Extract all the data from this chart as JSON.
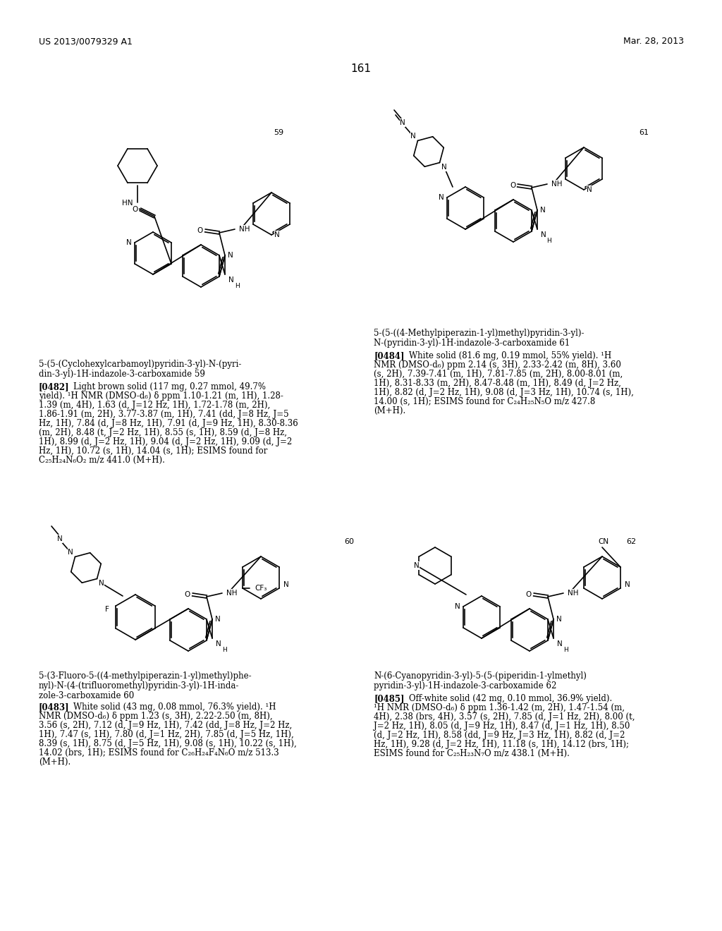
{
  "page_header_left": "US 2013/0079329 A1",
  "page_header_right": "Mar. 28, 2013",
  "page_number": "161",
  "bg_color": "#ffffff",
  "compound_labels": [
    "59",
    "61",
    "60",
    "62"
  ],
  "name59_lines": [
    "5-(5-(Cyclohexylcarbamoyl)pyridin-3-yl)-N-(pyri-",
    "din-3-yl)-1H-indazole-3-carboxamide 59"
  ],
  "name61_lines": [
    "5-(5-((4-Methylpiperazin-1-yl)methyl)pyridin-3-yl)-",
    "N-(pyridin-3-yl)-1H-indazole-3-carboxamide 61"
  ],
  "name60_lines": [
    "5-(3-Fluoro-5-((4-methylpiperazin-1-yl)methyl)phe-",
    "nyl)-N-(4-(trifluoromethyl)pyridin-3-yl)-1H-inda-",
    "zole-3-carboxamide 60"
  ],
  "name62_lines": [
    "N-(6-Cyanopyridin-3-yl)-5-(5-(piperidin-1-ylmethyl)",
    "pyridin-3-yl)-1H-indazole-3-carboxamide 62"
  ],
  "para482_label": "[0482]",
  "para482_lines": [
    "Light brown solid (117 mg, 0.27 mmol, 49.7%",
    "yield). ¹H NMR (DMSO-d₆) δ ppm 1.10-1.21 (m, 1H), 1.28-",
    "1.39 (m, 4H), 1.63 (d, J=12 Hz, 1H), 1.72-1.78 (m, 2H),",
    "1.86-1.91 (m, 2H), 3.77-3.87 (m, 1H), 7.41 (dd, J=8 Hz, J=5",
    "Hz, 1H), 7.84 (d, J=8 Hz, 1H), 7.91 (d, J=9 Hz, 1H), 8.30-8.36",
    "(m, 2H), 8.48 (t, J=2 Hz, 1H), 8.55 (s, 1H), 8.59 (d, J=8 Hz,",
    "1H), 8.99 (d, J=2 Hz, 1H), 9.04 (d, J=2 Hz, 1H), 9.09 (d, J=2",
    "Hz, 1H), 10.72 (s, 1H), 14.04 (s, 1H); ESIMS found for",
    "C₂₅H₂₄N₆O₂ m/z 441.0 (M+H)."
  ],
  "para484_label": "[0484]",
  "para484_lines": [
    "White solid (81.6 mg, 0.19 mmol, 55% yield). ¹H",
    "NMR (DMSO-d₆) ppm 2.14 (s, 3H), 2.33-2.42 (m, 8H), 3.60",
    "(s, 2H), 7.39-7.41 (m, 1H), 7.81-7.85 (m, 2H), 8.00-8.01 (m,",
    "1H), 8.31-8.33 (m, 2H), 8.47-8.48 (m, 1H), 8.49 (d, J=2 Hz,",
    "1H), 8.82 (d, J=2 Hz, 1H), 9.08 (d, J=3 Hz, 1H), 10.74 (s, 1H),",
    "14.00 (s, 1H); ESIMS found for C₂₄H₂₅N₅O m/z 427.8",
    "(M+H)."
  ],
  "para483_label": "[0483]",
  "para483_lines": [
    "White solid (43 mg, 0.08 mmol, 76.3% yield). ¹H",
    "NMR (DMSO-d₆) δ ppm 1.23 (s, 3H), 2.22-2.50 (m, 8H),",
    "3.56 (s, 2H), 7.12 (d, J=9 Hz, 1H), 7.42 (dd, J=8 Hz, J=2 Hz,",
    "1H), 7.47 (s, 1H), 7.80 (d, J=1 Hz, 2H), 7.85 (d, J=5 Hz, 1H),",
    "8.39 (s, 1H), 8.75 (d, J=5 Hz, 1H), 9.08 (s, 1H), 10.22 (s, 1H),",
    "14.02 (brs, 1H); ESIMS found for C₂₆H₂₄F₄N₆O m/z 513.3",
    "(M+H)."
  ],
  "para485_label": "[0485]",
  "para485_lines": [
    "Off-white solid (42 mg, 0.10 mmol, 36.9% yield).",
    "¹H NMR (DMSO-d₆) δ ppm 1.36-1.42 (m, 2H), 1.47-1.54 (m,",
    "4H), 2.38 (brs, 4H), 3.57 (s, 2H), 7.85 (d, J=1 Hz, 2H), 8.00 (t,",
    "J=2 Hz, 1H), 8.05 (d, J=9 Hz, 1H), 8.47 (d, J=1 Hz, 1H), 8.50",
    "(d, J=2 Hz, 1H), 8.58 (dd, J=9 Hz, J=3 Hz, 1H), 8.82 (d, J=2",
    "Hz, 1H), 9.28 (d, J=2 Hz, 1H), 11.18 (s, 1H), 14.12 (brs, 1H);",
    "ESIMS found for C₂₅H₂₃N₇O m/z 438.1 (M+H)."
  ]
}
